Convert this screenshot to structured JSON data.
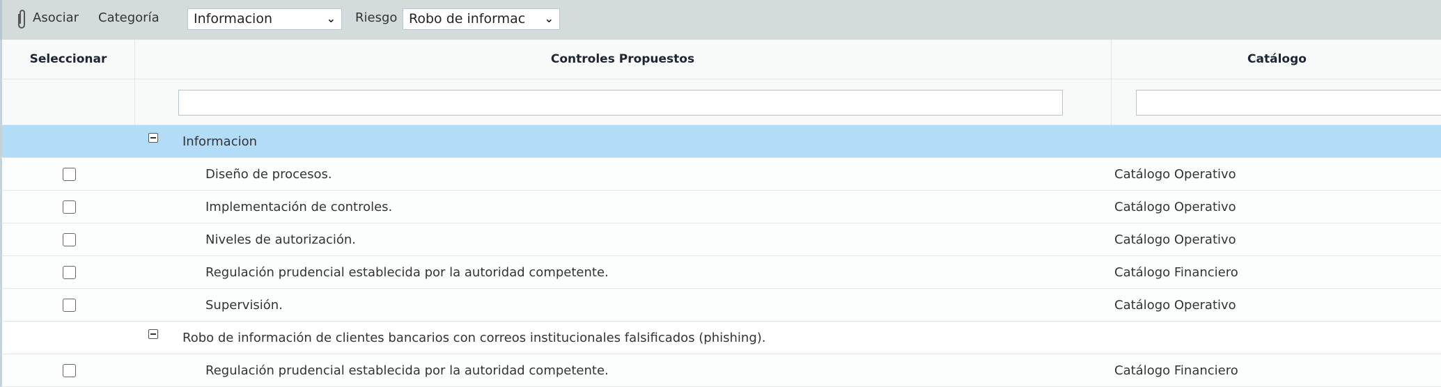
{
  "toolbar": {
    "attach_icon": "paperclip-icon",
    "associate_label": "Asociar",
    "category_label": "Categoría",
    "category_value": "Informacion",
    "risk_label": "Riesgo",
    "risk_value": "Robo de informac"
  },
  "table": {
    "headers": {
      "select": "Seleccionar",
      "controls": "Controles Propuestos",
      "catalog": "Catálogo"
    },
    "filters": {
      "controls": "",
      "catalog": ""
    },
    "rows": [
      {
        "type": "group",
        "label": "Informacion"
      },
      {
        "type": "item",
        "control": "Diseño de procesos.",
        "catalog": "Catálogo Operativo",
        "checked": false
      },
      {
        "type": "item",
        "control": "Implementación de controles.",
        "catalog": "Catálogo Operativo",
        "checked": false
      },
      {
        "type": "item",
        "control": "Niveles de autorización.",
        "catalog": "Catálogo Operativo",
        "checked": false
      },
      {
        "type": "item",
        "control": "Regulación prudencial establecida por la autoridad competente.",
        "catalog": "Catálogo Financiero",
        "checked": false
      },
      {
        "type": "item",
        "control": "Supervisión.",
        "catalog": "Catálogo Operativo",
        "checked": false
      },
      {
        "type": "group",
        "label": "Robo de información de clientes bancarios con correos institucionales falsificados (phishing)."
      },
      {
        "type": "item",
        "control": "Regulación prudencial establecida por la autoridad competente.",
        "catalog": "Catálogo Financiero",
        "checked": false
      }
    ]
  },
  "colors": {
    "toolbar": "#d3dbdb",
    "selected_group": "#b3dcf9"
  }
}
